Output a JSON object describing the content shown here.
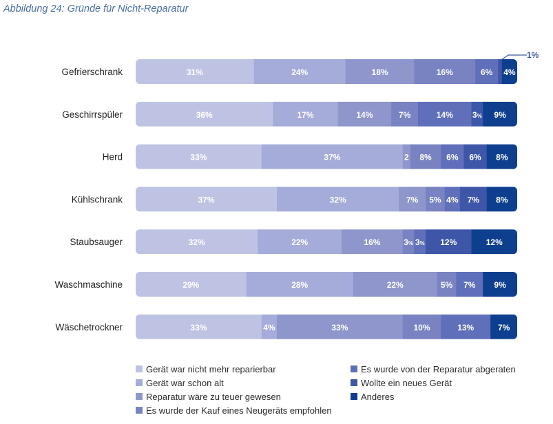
{
  "caption": "Abbildung 24: Gründe für Nicht-Reparatur",
  "chart_data": {
    "type": "bar",
    "orientation": "horizontal",
    "stacked": true,
    "categories": [
      "Gefrierschrank",
      "Geschirrspüler",
      "Herd",
      "Kühlschrank",
      "Staubsauger",
      "Waschmaschine",
      "Wäschetrockner"
    ],
    "series": [
      {
        "name": "Gerät war nicht mehr reparierbar",
        "color": "#bfc3e3",
        "values": [
          31,
          36,
          33,
          37,
          32,
          29,
          33
        ]
      },
      {
        "name": "Gerät war schon alt",
        "color": "#a6acd9",
        "values": [
          24,
          17,
          37,
          32,
          22,
          28,
          4
        ]
      },
      {
        "name": "Reparatur wäre zu teuer gewesen",
        "color": "#8e96cc",
        "values": [
          18,
          14,
          2,
          7,
          16,
          22,
          33
        ]
      },
      {
        "name": "Es wurde der Kauf eines Neugeräts empfohlen",
        "color": "#7983c2",
        "values": [
          16,
          7,
          8,
          5,
          3,
          5,
          10
        ]
      },
      {
        "name": "Es wurde von der Reparatur abgeraten",
        "color": "#5f6fb9",
        "values": [
          6,
          14,
          6,
          4,
          3,
          7,
          13
        ]
      },
      {
        "name": "Wollte ein neues Gerät",
        "color": "#3e56a8",
        "values": [
          1,
          3,
          6,
          7,
          12,
          0,
          0
        ]
      },
      {
        "name": "Anderes",
        "color": "#0e3f8f",
        "values": [
          4,
          9,
          8,
          8,
          12,
          9,
          7
        ]
      }
    ],
    "segment_labels": [
      [
        "31%",
        "24%",
        "18%",
        "16%",
        "6%",
        "",
        "4%"
      ],
      [
        "36%",
        "17%",
        "14%",
        "7%",
        "14%",
        "3%",
        "9%"
      ],
      [
        "33%",
        "37%",
        "2",
        "8%",
        "6%",
        "6%",
        "8%"
      ],
      [
        "37%",
        "32%",
        "7%",
        "5%",
        "4%",
        "7%",
        "8%"
      ],
      [
        "32%",
        "22%",
        "16%",
        "3%",
        "3%",
        "12%",
        "12%"
      ],
      [
        "29%",
        "28%",
        "22%",
        "5%",
        "7%",
        "",
        "9%"
      ],
      [
        "33%",
        "4%",
        "33%",
        "10%",
        "13%",
        "",
        "7%"
      ]
    ],
    "callouts": [
      {
        "category": "Gefrierschrank",
        "series": "Wollte ein neues Gerät",
        "label": "1%"
      }
    ],
    "legend": "bottom",
    "grid": false,
    "xlim": [
      0,
      100
    ]
  }
}
